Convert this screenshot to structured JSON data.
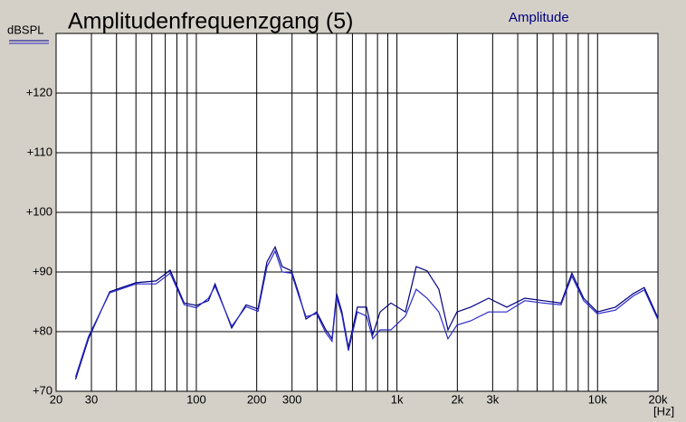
{
  "chart_data": {
    "type": "line",
    "title": "Amplitudenfrequenzgang (5)",
    "y_label": "dBSPL",
    "x_label": "[Hz]",
    "legend_label": "Amplitude",
    "xscale": "log",
    "grid": true,
    "xlim": [
      20,
      20000
    ],
    "ylim": [
      70,
      130
    ],
    "xticks": [
      20,
      30,
      100,
      200,
      300,
      {
        "value": 1000,
        "label": "1k"
      },
      {
        "value": 2000,
        "label": "2k"
      },
      {
        "value": 3000,
        "label": "3k"
      },
      {
        "value": 10000,
        "label": "10k"
      },
      {
        "value": 20000,
        "label": "20k"
      }
    ],
    "xminor_ticks": [
      40,
      50,
      60,
      70,
      80,
      90,
      400,
      500,
      600,
      700,
      800,
      900,
      4000,
      5000,
      6000,
      7000,
      8000,
      9000
    ],
    "yticks": [
      {
        "value": 70,
        "label": "+70"
      },
      {
        "value": 80,
        "label": "+80"
      },
      {
        "value": 90,
        "label": "+90"
      },
      {
        "value": 100,
        "label": "+100"
      },
      {
        "value": 110,
        "label": "+110"
      },
      {
        "value": 120,
        "label": "+120"
      },
      130
    ],
    "x": [
      25,
      29,
      37,
      50,
      63,
      74,
      87,
      100,
      115,
      124,
      150,
      177,
      203,
      225,
      247,
      268,
      298,
      324,
      352,
      398,
      442,
      475,
      500,
      532,
      573,
      635,
      705,
      758,
      824,
      933,
      1102,
      1248,
      1413,
      1618,
      1796,
      1992,
      2328,
      2864,
      3525,
      4340,
      5346,
      6576,
      7447,
      8528,
      9970,
      12270,
      15090,
      17100,
      20000
    ],
    "series": [
      {
        "color": "#000080",
        "values": [
          72.0,
          78.8,
          86.7,
          88.2,
          88.5,
          90.3,
          84.8,
          84.4,
          85.2,
          88.0,
          80.6,
          84.5,
          83.8,
          91.7,
          94.2,
          90.9,
          90.2,
          86.4,
          82.1,
          83.3,
          80.3,
          78.8,
          86.4,
          83.3,
          77.3,
          84.1,
          84.1,
          79.5,
          83.3,
          84.8,
          83.3,
          90.9,
          90.2,
          87.1,
          80.3,
          83.3,
          84.1,
          85.6,
          84.1,
          85.6,
          85.2,
          84.8,
          89.8,
          85.6,
          83.3,
          84.1,
          86.4,
          87.4,
          82.3
        ]
      },
      {
        "color": "#2828c8",
        "values": [
          72.4,
          79.2,
          86.5,
          88.0,
          88.0,
          89.8,
          84.5,
          84.0,
          85.6,
          87.6,
          80.9,
          84.2,
          83.4,
          90.9,
          93.5,
          90.0,
          89.8,
          86.0,
          82.5,
          83.0,
          79.8,
          78.4,
          85.8,
          82.8,
          76.8,
          83.3,
          82.6,
          78.8,
          80.3,
          80.3,
          82.6,
          87.1,
          85.6,
          83.3,
          78.8,
          81.1,
          81.8,
          83.3,
          83.3,
          85.2,
          84.8,
          84.5,
          89.3,
          85.2,
          83.0,
          83.6,
          86.0,
          87.0,
          82.0
        ]
      }
    ]
  }
}
